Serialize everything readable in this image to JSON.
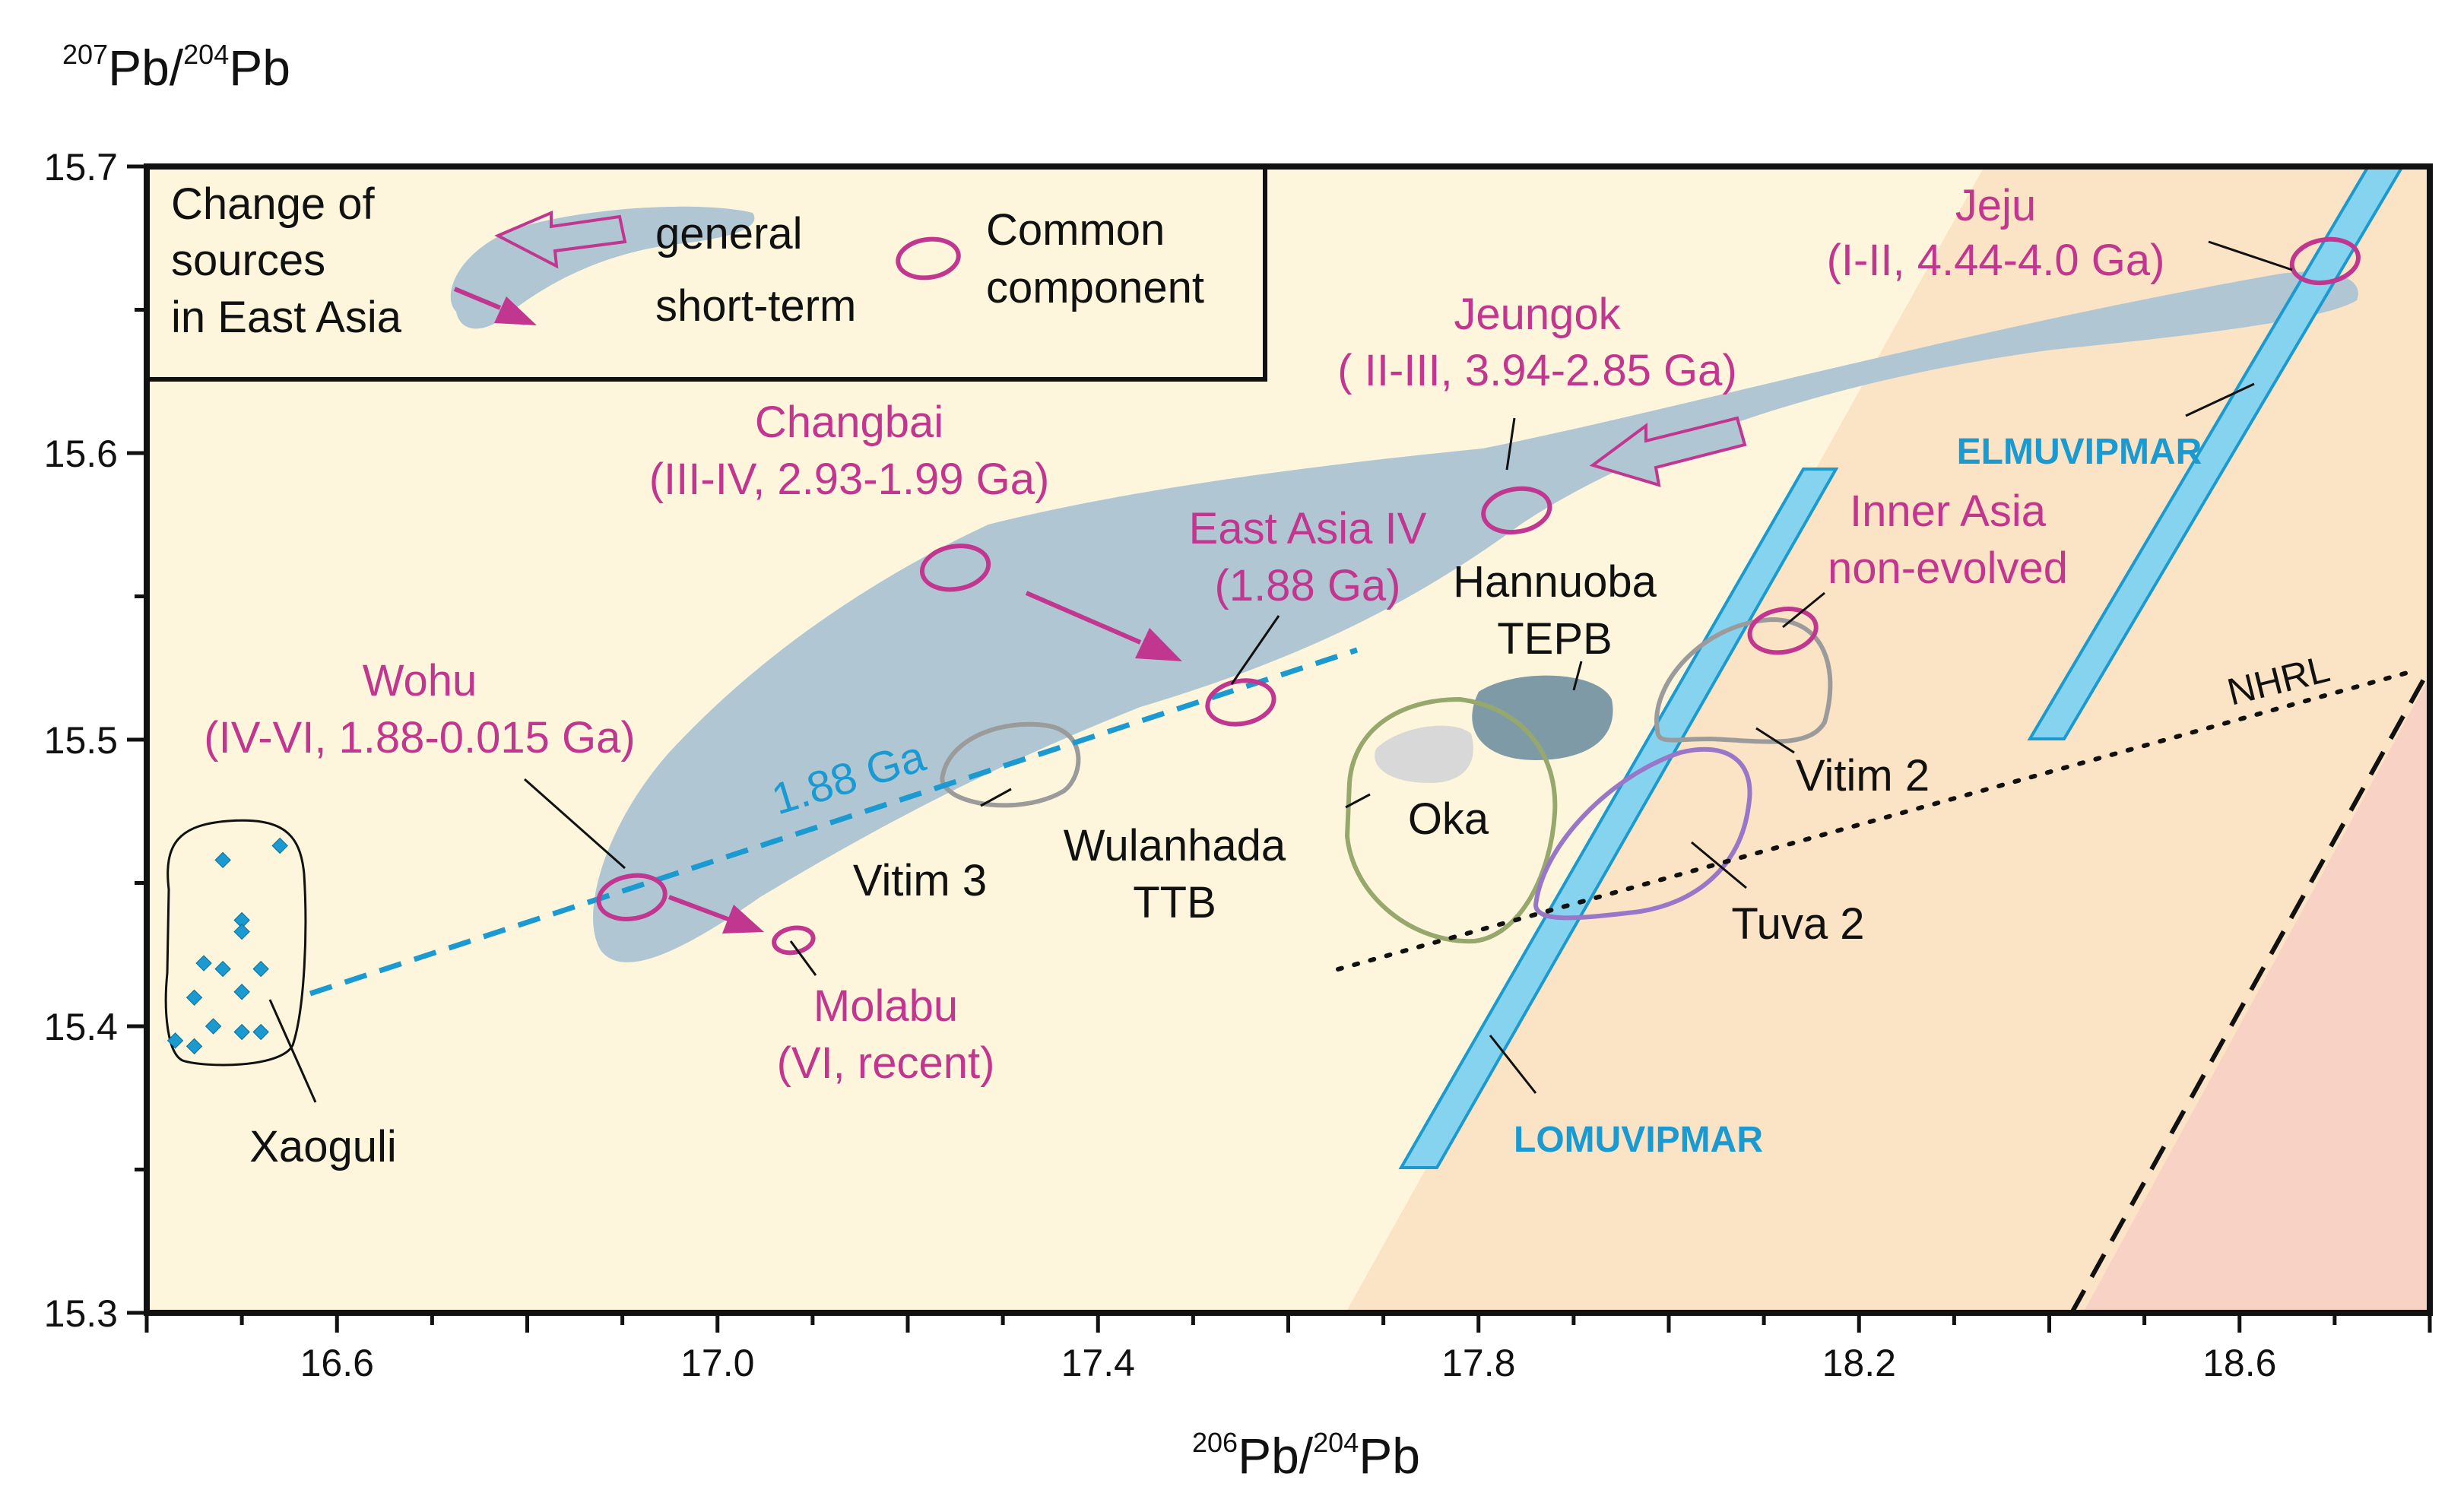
{
  "chart_data": {
    "type": "scatter",
    "title": "",
    "y_axis_label": {
      "sup1": "207",
      "base1": "Pb/",
      "sup2": "204",
      "base2": "Pb"
    },
    "x_axis_label": {
      "sup1": "206",
      "base1": "Pb/",
      "sup2": "204",
      "base2": "Pb"
    },
    "xlim": [
      16.4,
      18.8
    ],
    "ylim": [
      15.3,
      15.7
    ],
    "x_ticks": [
      "16.6",
      "17.0",
      "17.4",
      "17.8",
      "18.2",
      "18.6"
    ],
    "y_ticks": [
      "15.3",
      "15.4",
      "15.5",
      "15.6",
      "15.7"
    ],
    "legend": {
      "title_lines": [
        "Change of",
        "sources",
        "in East Asia"
      ],
      "general": "general",
      "short_term": "short-term",
      "common_lines": [
        "Common",
        "component"
      ]
    },
    "components": [
      {
        "name": "Jeju",
        "detail": "(I-II, 4.44-4.0 Ga)",
        "x": 18.69,
        "y": 15.667
      },
      {
        "name": "Jeungok",
        "detail": "( II-III, 3.94-2.85 Ga)",
        "x": 17.84,
        "y": 15.58
      },
      {
        "name": "Changbai",
        "detail": "(III-IV, 2.93-1.99 Ga)",
        "x": 17.25,
        "y": 15.56
      },
      {
        "name": "East Asia IV",
        "detail": "(1.88 Ga)",
        "x": 17.55,
        "y": 15.513
      },
      {
        "name": "Wohu",
        "detail": "(IV-VI, 1.88-0.015 Ga)",
        "x": 16.91,
        "y": 15.445
      },
      {
        "name": "Molabu",
        "detail": "(VI, recent)",
        "x": 17.08,
        "y": 15.43
      },
      {
        "name": "Inner Asia",
        "detail": "non-evolved",
        "x": 18.12,
        "y": 15.538
      }
    ],
    "fields": [
      "Vitim 3",
      "Vitim 2",
      "Tuva 2",
      "Oka",
      "Hannuoba",
      "TEPB",
      "Wulanhada",
      "TTB",
      "Xaoguli"
    ],
    "reference_lines": [
      "1.88 Ga",
      "NHRL",
      "ELMUVIPMAR",
      "LOMUVIPMAR"
    ],
    "xaoguli_points": [
      {
        "x": 16.54,
        "y": 15.463
      },
      {
        "x": 16.48,
        "y": 15.458
      },
      {
        "x": 16.5,
        "y": 15.437
      },
      {
        "x": 16.5,
        "y": 15.433
      },
      {
        "x": 16.46,
        "y": 15.422
      },
      {
        "x": 16.48,
        "y": 15.42
      },
      {
        "x": 16.52,
        "y": 15.42
      },
      {
        "x": 16.5,
        "y": 15.412
      },
      {
        "x": 16.45,
        "y": 15.41
      },
      {
        "x": 16.47,
        "y": 15.4
      },
      {
        "x": 16.5,
        "y": 15.398
      },
      {
        "x": 16.52,
        "y": 15.398
      },
      {
        "x": 16.43,
        "y": 15.395
      },
      {
        "x": 16.45,
        "y": 15.393
      }
    ]
  },
  "colors": {
    "bg_cream": "#fdf6dc",
    "bg_peach": "#fbe3c6",
    "bg_pink": "#f8d2c4",
    "field_blue": "#b1c6d3",
    "magenta": "#c1368f",
    "cyan": "#1a9ad0",
    "cyan_fill": "#86d3ef",
    "tepb": "#7e9aa6",
    "olive": "#97a86c",
    "purple": "#9876c8",
    "gray": "#9b9b9b"
  }
}
